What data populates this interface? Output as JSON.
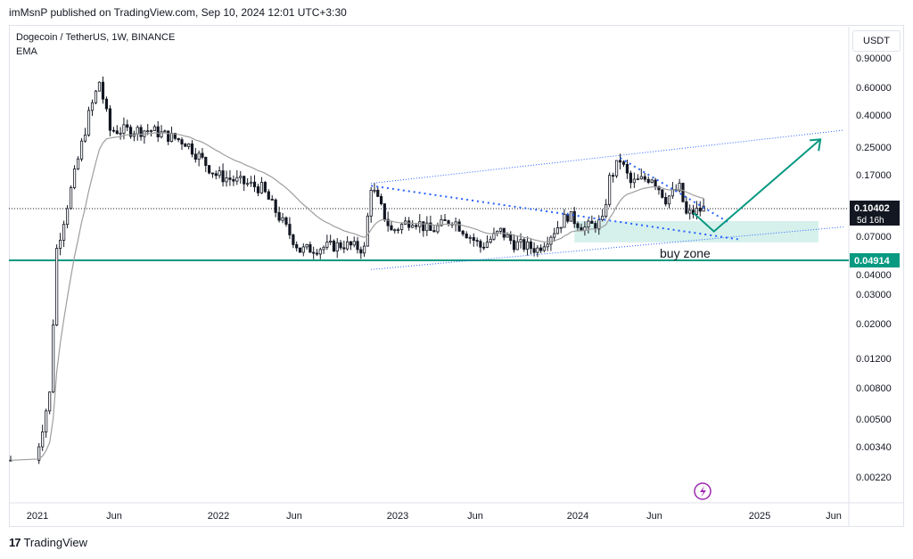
{
  "header": {
    "published": "imMsnP published on TradingView.com, Sep 10, 2024 12:01 UTC+3:30"
  },
  "legend": {
    "title": "Dogecoin / TetherUS, 1W, BINANCE",
    "indicator": "EMA"
  },
  "currency_button": "USDT",
  "price_labels": {
    "current_price": "0.10402",
    "countdown": "5d 16h",
    "support_price": "0.04914"
  },
  "annotations": {
    "buy_zone": "buy zone"
  },
  "footer": {
    "brand": "TradingView"
  },
  "colors": {
    "candle": "#131722",
    "ema": "#9e9e9e",
    "trendline": "#2962ff",
    "support": "#089981",
    "arrow": "#089981",
    "buy_zone": "#cfeee9",
    "lightning": "#9c27b0"
  },
  "chart_data": {
    "type": "candlestick",
    "symbol": "Dogecoin / TetherUS",
    "interval": "1W",
    "exchange": "BINANCE",
    "scale": "log",
    "yticks": [
      0.9,
      0.6,
      0.4,
      0.25,
      0.17,
      0.1,
      0.07,
      0.04,
      0.03,
      0.02,
      0.012,
      0.008,
      0.005,
      0.0034,
      0.0022
    ],
    "ytick_labels": [
      "0.90000",
      "0.60000",
      "0.40000",
      "0.25000",
      "0.17000",
      "0.10000",
      "0.07000",
      "0.04000",
      "0.03000",
      "0.02000",
      "0.01200",
      "0.00800",
      "0.00500",
      "0.00340",
      "0.00220"
    ],
    "xticks": [
      {
        "label": "2021",
        "date": "2021-01-01"
      },
      {
        "label": "Jun",
        "date": "2021-06-01"
      },
      {
        "label": "2022",
        "date": "2022-01-01"
      },
      {
        "label": "Jun",
        "date": "2022-06-01"
      },
      {
        "label": "2023",
        "date": "2023-01-01"
      },
      {
        "label": "Jun",
        "date": "2023-06-01"
      },
      {
        "label": "2024",
        "date": "2024-01-01"
      },
      {
        "label": "Jun",
        "date": "2024-06-01"
      },
      {
        "label": "2025",
        "date": "2025-01-01"
      },
      {
        "label": "Jun",
        "date": "2025-06-01"
      }
    ],
    "current_price": 0.10402,
    "support_level": 0.04914,
    "key_points": [
      {
        "date": "2020-12-28",
        "price": 0.0028
      },
      {
        "date": "2021-01-25",
        "price": 0.0073
      },
      {
        "date": "2021-02-08",
        "price": 0.058
      },
      {
        "date": "2021-04-12",
        "price": 0.4
      },
      {
        "date": "2021-05-03",
        "price": 0.65
      },
      {
        "date": "2021-05-24",
        "price": 0.32
      },
      {
        "date": "2021-08-16",
        "price": 0.32
      },
      {
        "date": "2021-10-25",
        "price": 0.27
      },
      {
        "date": "2021-12-27",
        "price": 0.17
      },
      {
        "date": "2022-02-07",
        "price": 0.155
      },
      {
        "date": "2022-03-28",
        "price": 0.14
      },
      {
        "date": "2022-05-09",
        "price": 0.085
      },
      {
        "date": "2022-06-13",
        "price": 0.057
      },
      {
        "date": "2022-09-12",
        "price": 0.062
      },
      {
        "date": "2022-10-24",
        "price": 0.058
      },
      {
        "date": "2022-11-07",
        "price": 0.145
      },
      {
        "date": "2022-12-19",
        "price": 0.075
      },
      {
        "date": "2023-01-30",
        "price": 0.09
      },
      {
        "date": "2023-03-06",
        "price": 0.075
      },
      {
        "date": "2023-04-17",
        "price": 0.09
      },
      {
        "date": "2023-06-12",
        "price": 0.06
      },
      {
        "date": "2023-07-24",
        "price": 0.075
      },
      {
        "date": "2023-08-21",
        "price": 0.063
      },
      {
        "date": "2023-10-09",
        "price": 0.058
      },
      {
        "date": "2023-12-11",
        "price": 0.095
      },
      {
        "date": "2024-01-15",
        "price": 0.079
      },
      {
        "date": "2024-02-19",
        "price": 0.086
      },
      {
        "date": "2024-03-04",
        "price": 0.16
      },
      {
        "date": "2024-03-25",
        "price": 0.21
      },
      {
        "date": "2024-04-15",
        "price": 0.15
      },
      {
        "date": "2024-05-27",
        "price": 0.165
      },
      {
        "date": "2024-06-24",
        "price": 0.12
      },
      {
        "date": "2024-07-22",
        "price": 0.14
      },
      {
        "date": "2024-08-05",
        "price": 0.095
      },
      {
        "date": "2024-09-09",
        "price": 0.104
      }
    ],
    "drawings": {
      "upper_channel": {
        "from": {
          "date": "2022-11-07",
          "price": 0.15
        },
        "to": {
          "date": "2025-06-20",
          "price": 0.32
        }
      },
      "lower_channel": {
        "from": {
          "date": "2022-11-07",
          "price": 0.043
        },
        "to": {
          "date": "2025-06-20",
          "price": 0.08
        }
      },
      "descending_line_1": {
        "from": {
          "date": "2022-11-07",
          "price": 0.145
        },
        "to": {
          "date": "2024-11-18",
          "price": 0.067
        }
      },
      "descending_line_2": {
        "from": {
          "date": "2024-03-25",
          "price": 0.215
        },
        "to": {
          "date": "2024-10-28",
          "price": 0.086
        }
      },
      "buy_zone": {
        "from_date": "2023-12-25",
        "to_date": "2025-05-01",
        "low": 0.064,
        "high": 0.087
      },
      "arrow_path": [
        {
          "date": "2024-08-19",
          "price": 0.098
        },
        {
          "date": "2024-09-30",
          "price": 0.075
        },
        {
          "date": "2025-05-05",
          "price": 0.28
        }
      ]
    }
  }
}
